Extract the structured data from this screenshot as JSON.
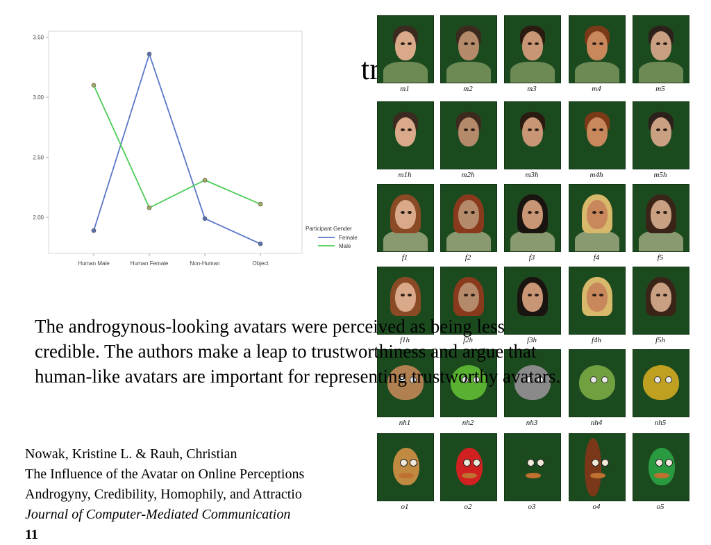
{
  "title_fragment": "tr",
  "chart_data": {
    "type": "line",
    "categories": [
      "Human Male",
      "Human Female",
      "Non-Human",
      "Object"
    ],
    "series": [
      {
        "name": "Female",
        "values": [
          1.89,
          3.36,
          1.99,
          1.78
        ],
        "color": "#5a76c8"
      },
      {
        "name": "Male",
        "values": [
          3.1,
          2.08,
          2.31,
          2.11
        ],
        "color": "#4ccc55"
      }
    ],
    "y_ticks": [
      "3.50",
      "3.00",
      "2.50",
      "2.00"
    ],
    "ylim": [
      1.7,
      3.55
    ],
    "legend_title": "Participant Gender",
    "legend_placement": "right",
    "grid": false
  },
  "avatars": {
    "rows": [
      [
        "m1",
        "m2",
        "m3",
        "m4",
        "m5"
      ],
      [
        "m1h",
        "m2h",
        "m3h",
        "m4h",
        "m5h"
      ],
      [
        "f1",
        "f2",
        "f3",
        "f4",
        "f5"
      ],
      [
        "f1h",
        "f2h",
        "f3h",
        "f4h",
        "f5h"
      ],
      [
        "nh1",
        "nh2",
        "nh3",
        "nh4",
        "nh5"
      ],
      [
        "o1",
        "o2",
        "o3",
        "o4",
        "o5"
      ]
    ]
  },
  "description": {
    "line1": "The androgynous-looking avatars were perceived as being less",
    "line2": "credible. The authors make a leap to trustworthiness and argue that",
    "line3": "human-like avatars are important for representing trustworthy avatars."
  },
  "citation": {
    "authors": "Nowak, Kristine L. & Rauh, Christian",
    "title_line1": "The Influence of the Avatar on Online Perceptions",
    "title_line2": "Androgyny, Credibility, Homophily, and Attractio",
    "journal": "Journal of Computer-Mediated Communication",
    "volume": "11"
  }
}
